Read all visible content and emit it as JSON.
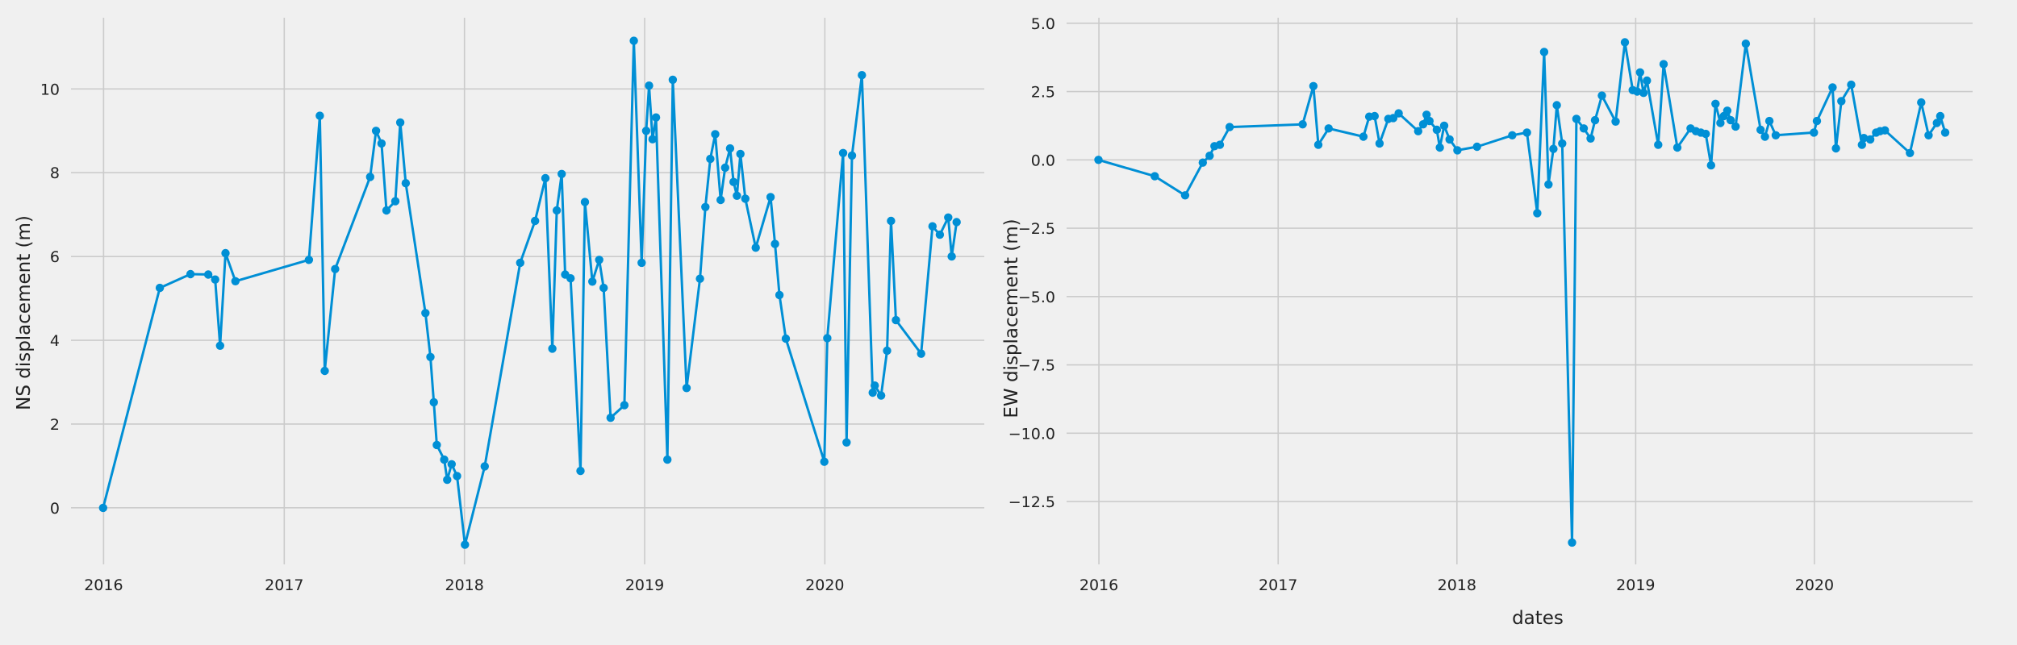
{
  "chart_data": [
    {
      "type": "line",
      "title": "",
      "xlabel": "",
      "ylabel": "NS displacement (m)",
      "x_ticks": [
        "2016",
        "2017",
        "2018",
        "2019",
        "2020"
      ],
      "y_ticks": [
        "0",
        "2",
        "4",
        "6",
        "8",
        "10"
      ],
      "xlim": [
        "2015-10-27",
        "2020-11-19"
      ],
      "ylim": [
        -1.35,
        11.7
      ],
      "grid": true,
      "color": "#008fd5",
      "series": [
        {
          "x": [
            "2015-12-31",
            "2016-04-24",
            "2016-06-25",
            "2016-07-31",
            "2016-08-14",
            "2016-08-24",
            "2016-09-04",
            "2016-09-24",
            "2017-02-20",
            "2017-03-14",
            "2017-03-24",
            "2017-04-14",
            "2017-06-24",
            "2017-07-06",
            "2017-07-17",
            "2017-07-27",
            "2017-08-14",
            "2017-08-24",
            "2017-09-04",
            "2017-10-14",
            "2017-10-24",
            "2017-10-31",
            "2017-11-06",
            "2017-11-21",
            "2017-11-27",
            "2017-12-06",
            "2017-12-17",
            "2018-01-02",
            "2018-02-11",
            "2018-04-24",
            "2018-05-24",
            "2018-06-14",
            "2018-06-28",
            "2018-07-07",
            "2018-07-17",
            "2018-07-24",
            "2018-08-04",
            "2018-08-24",
            "2018-09-02",
            "2018-09-17",
            "2018-10-01",
            "2018-10-10",
            "2018-10-24",
            "2018-11-21",
            "2018-12-10",
            "2018-12-26",
            "2019-01-04",
            "2019-01-10",
            "2019-01-17",
            "2019-01-24",
            "2019-02-16",
            "2019-02-27",
            "2019-03-27",
            "2019-04-23",
            "2019-05-04",
            "2019-05-14",
            "2019-05-24",
            "2019-06-04",
            "2019-06-13",
            "2019-06-23",
            "2019-06-30",
            "2019-07-07",
            "2019-07-14",
            "2019-07-24",
            "2019-08-14",
            "2019-09-13",
            "2019-09-22",
            "2019-10-01",
            "2019-10-14",
            "2019-12-31",
            "2020-01-06",
            "2020-02-07",
            "2020-02-14",
            "2020-02-25",
            "2020-03-16",
            "2020-04-07",
            "2020-04-11",
            "2020-04-24",
            "2020-05-06",
            "2020-05-14",
            "2020-05-24",
            "2020-07-14",
            "2020-08-06",
            "2020-08-21",
            "2020-09-07",
            "2020-09-14",
            "2020-09-24"
          ],
          "values": [
            0.0,
            5.25,
            5.58,
            5.57,
            5.45,
            3.87,
            6.08,
            5.41,
            5.92,
            9.36,
            3.27,
            5.7,
            7.9,
            9.0,
            8.7,
            7.1,
            7.32,
            9.2,
            7.75,
            4.65,
            3.6,
            2.52,
            1.5,
            1.15,
            0.67,
            1.04,
            0.76,
            -0.88,
            0.99,
            5.85,
            6.85,
            7.87,
            3.8,
            7.1,
            7.97,
            5.57,
            5.48,
            0.88,
            7.3,
            5.4,
            5.92,
            5.25,
            2.15,
            2.45,
            11.15,
            5.85,
            9.0,
            10.08,
            8.8,
            9.32,
            1.15,
            10.22,
            2.86,
            5.47,
            7.18,
            8.33,
            8.92,
            7.35,
            8.12,
            8.58,
            7.78,
            7.45,
            8.45,
            7.38,
            6.21,
            7.42,
            6.3,
            5.08,
            4.04,
            1.1,
            4.05,
            8.47,
            1.56,
            8.41,
            10.33,
            2.75,
            2.92,
            2.68,
            3.75,
            6.85,
            4.48,
            3.68,
            6.72,
            6.52,
            6.93,
            6.0,
            6.82
          ]
        }
      ]
    },
    {
      "type": "line",
      "title": "",
      "xlabel": "dates",
      "ylabel": "EW displacement (m)",
      "x_ticks": [
        "2016",
        "2017",
        "2018",
        "2019",
        "2020"
      ],
      "y_ticks": [
        "5.0",
        "2.5",
        "0.0",
        "−2.5",
        "−5.0",
        "−7.5",
        "−10.0",
        "−12.5"
      ],
      "xlim": [
        "2015-10-27",
        "2020-11-19"
      ],
      "ylim": [
        -14.8,
        5.2
      ],
      "grid": true,
      "color": "#008fd5",
      "series": [
        {
          "x": [
            "2015-12-31",
            "2016-04-24",
            "2016-06-25",
            "2016-07-31",
            "2016-08-14",
            "2016-08-24",
            "2016-09-04",
            "2016-09-24",
            "2017-02-20",
            "2017-03-14",
            "2017-03-24",
            "2017-04-14",
            "2017-06-24",
            "2017-07-06",
            "2017-07-17",
            "2017-07-27",
            "2017-08-14",
            "2017-08-24",
            "2017-09-04",
            "2017-10-14",
            "2017-10-24",
            "2017-10-31",
            "2017-11-06",
            "2017-11-21",
            "2017-11-27",
            "2017-12-06",
            "2017-12-17",
            "2018-01-02",
            "2018-02-11",
            "2018-04-24",
            "2018-05-24",
            "2018-06-14",
            "2018-06-28",
            "2018-07-07",
            "2018-07-17",
            "2018-07-24",
            "2018-08-04",
            "2018-08-24",
            "2018-09-02",
            "2018-09-17",
            "2018-10-01",
            "2018-10-10",
            "2018-10-24",
            "2018-11-21",
            "2018-12-10",
            "2018-12-26",
            "2019-01-04",
            "2019-01-10",
            "2019-01-17",
            "2019-01-24",
            "2019-02-16",
            "2019-02-27",
            "2019-03-27",
            "2019-04-23",
            "2019-05-04",
            "2019-05-14",
            "2019-05-24",
            "2019-06-04",
            "2019-06-13",
            "2019-06-23",
            "2019-06-30",
            "2019-07-07",
            "2019-07-14",
            "2019-07-24",
            "2019-08-14",
            "2019-09-13",
            "2019-09-22",
            "2019-10-01",
            "2019-10-14",
            "2019-12-31",
            "2020-01-06",
            "2020-02-07",
            "2020-02-14",
            "2020-02-25",
            "2020-03-16",
            "2020-04-07",
            "2020-04-11",
            "2020-04-24",
            "2020-05-06",
            "2020-05-14",
            "2020-05-24",
            "2020-07-14",
            "2020-08-06",
            "2020-08-21",
            "2020-09-07",
            "2020-09-14",
            "2020-09-24"
          ],
          "values": [
            0.0,
            -0.6,
            -1.3,
            -0.1,
            0.15,
            0.5,
            0.55,
            1.2,
            1.3,
            2.7,
            0.55,
            1.15,
            0.85,
            1.58,
            1.6,
            0.6,
            1.5,
            1.53,
            1.7,
            1.05,
            1.3,
            1.65,
            1.42,
            1.1,
            0.45,
            1.25,
            0.75,
            0.35,
            0.48,
            0.9,
            1.0,
            -1.95,
            3.95,
            -0.9,
            0.4,
            2.0,
            0.6,
            -14.0,
            1.5,
            1.15,
            0.78,
            1.45,
            2.35,
            1.4,
            4.3,
            2.55,
            2.5,
            3.2,
            2.45,
            2.9,
            0.55,
            3.5,
            0.45,
            1.15,
            1.05,
            1.0,
            0.95,
            -0.2,
            2.05,
            1.35,
            1.6,
            1.8,
            1.45,
            1.22,
            4.25,
            1.1,
            0.85,
            1.42,
            0.9,
            1.0,
            1.42,
            2.65,
            0.42,
            2.15,
            2.75,
            0.55,
            0.8,
            0.75,
            1.0,
            1.05,
            1.08,
            0.25,
            2.1,
            0.9,
            1.35,
            1.6,
            1.0
          ]
        }
      ]
    }
  ]
}
